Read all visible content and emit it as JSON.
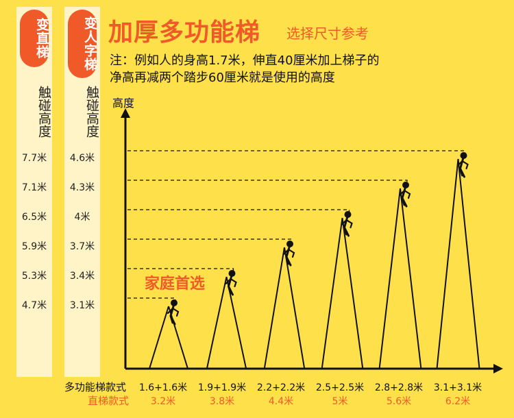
{
  "header": {
    "title": "加厚多功能梯",
    "subtitle": "选择尺寸参考",
    "note_line1": "注：例如人的身高1.7米，伸直40厘米加上梯子的",
    "note_line2": "净高再减两个踏步60厘米就是使用的高度"
  },
  "columns": {
    "straight": {
      "badge": "变直梯",
      "label": "触碰高度",
      "values": [
        "7.7米",
        "7.1米",
        "6.5米",
        "5.9米",
        "5.3米",
        "4.7米"
      ]
    },
    "a_frame": {
      "badge": "变人字梯",
      "label": "触碰高度",
      "values": [
        "4.6米",
        "4.3米",
        "4米",
        "3.7米",
        "3.4米",
        "3.1米"
      ]
    }
  },
  "chart": {
    "y_title": "高度",
    "highlight": "家庭首选",
    "row_label_multi": "多功能梯款式",
    "row_label_straight": "直梯款式",
    "styles": [
      "1.6+1.6米",
      "1.9+1.9米",
      "2.2+2.2米",
      "2.5+2.5米",
      "2.8+2.8米",
      "3.1+3.1米"
    ],
    "straight_lengths": [
      "3.2米",
      "3.8米",
      "4.4米",
      "5米",
      "5.6米",
      "6.2米"
    ],
    "reach_a_frame": [
      3.1,
      3.4,
      3.7,
      4.0,
      4.3,
      4.6
    ]
  },
  "colors": {
    "background": "#fde04a",
    "accent": "#f05a28",
    "column_bg": "#fff3c8",
    "ink": "#111111"
  }
}
